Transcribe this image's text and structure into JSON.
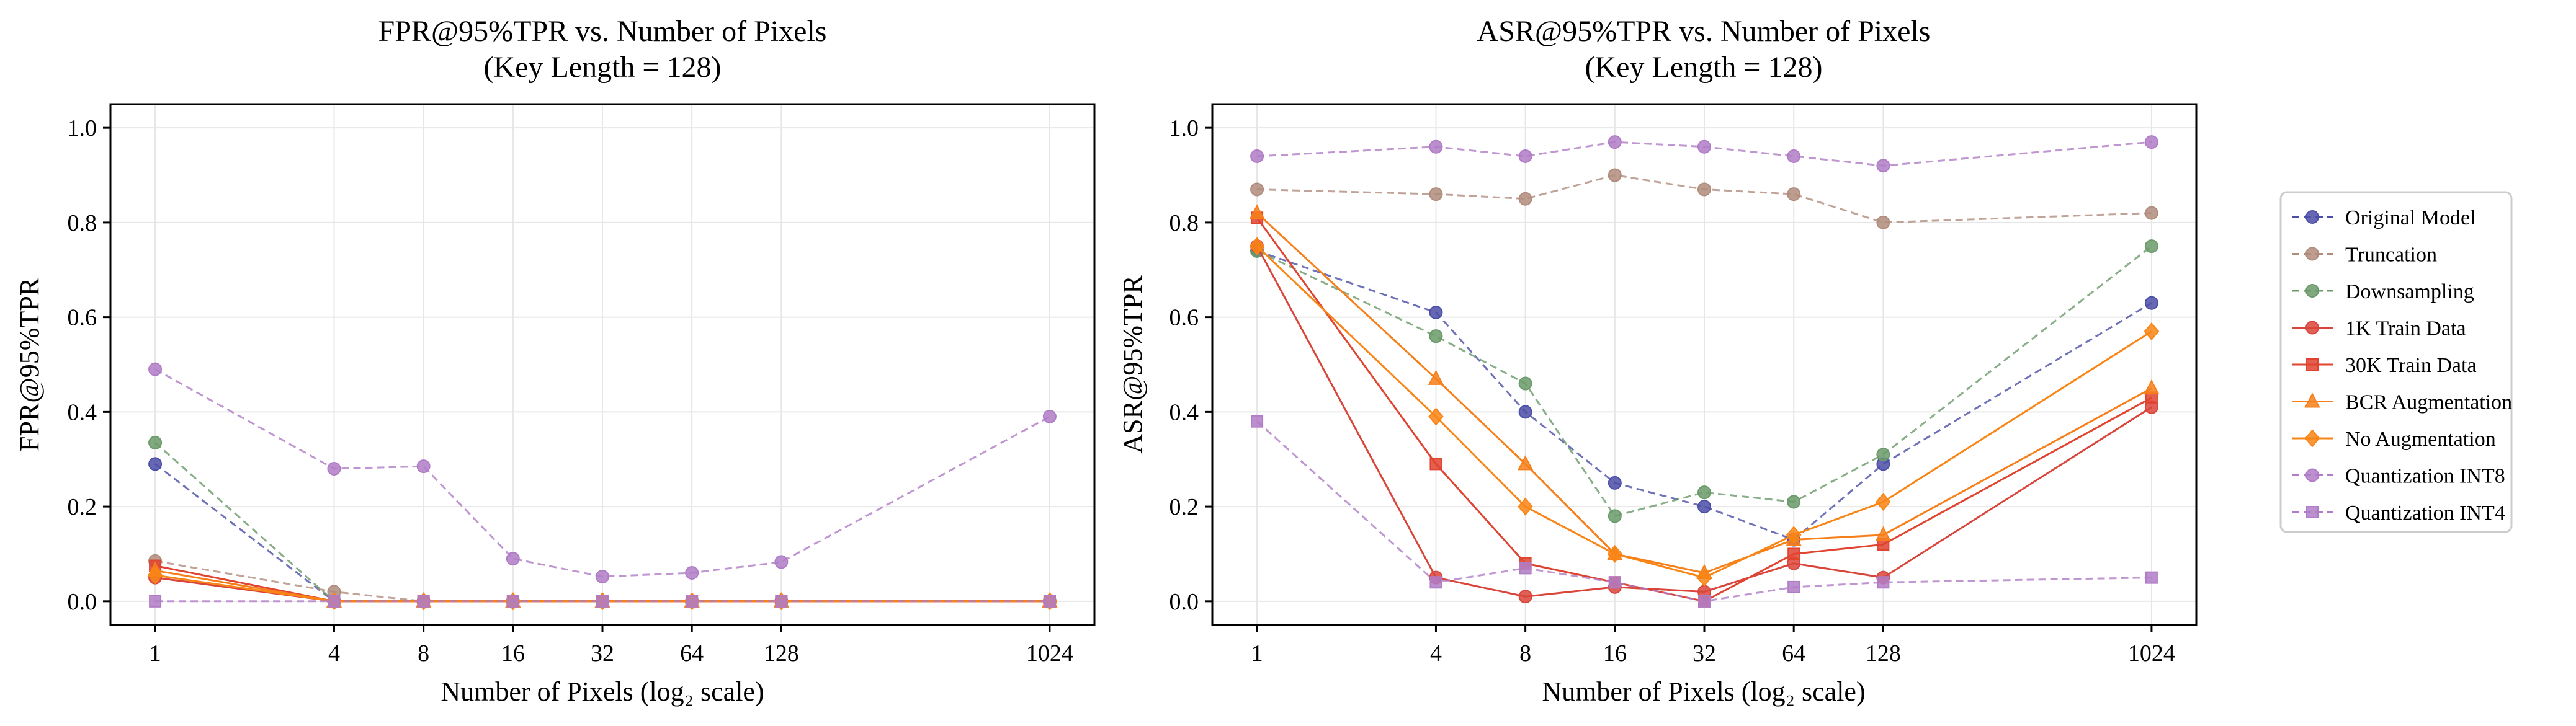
{
  "chart_data": [
    {
      "type": "line",
      "title": "FPR@95%TPR vs. Number of Pixels",
      "subtitle": "(Key Length = 128)",
      "xlabel": "Number of Pixels (log₂ scale)",
      "ylabel": "FPR@95%TPR",
      "x_scale": "log2",
      "x": [
        1,
        4,
        8,
        16,
        32,
        64,
        128,
        1024
      ],
      "x_ticks": [
        "1",
        "4",
        "8",
        "16",
        "32",
        "64",
        "128",
        "1024"
      ],
      "y_ticks": [
        "0.0",
        "0.2",
        "0.4",
        "0.6",
        "0.8",
        "1.0"
      ],
      "ylim": [
        -0.05,
        1.05
      ],
      "grid": true,
      "series": [
        {
          "name": "Original Model",
          "values": [
            0.29,
            0.0,
            0.0,
            0.0,
            0.0,
            0.0,
            0.0,
            0.0
          ],
          "color": "#4b4ea6",
          "dashed": true,
          "marker": "circle"
        },
        {
          "name": "Truncation",
          "values": [
            0.085,
            0.02,
            0.0,
            0.0,
            0.0,
            0.0,
            0.0,
            0.0
          ],
          "color": "#b08c7d",
          "dashed": true,
          "marker": "circle"
        },
        {
          "name": "Downsampling",
          "values": [
            0.335,
            0.0,
            0.0,
            0.0,
            0.0,
            0.0,
            0.0,
            0.0
          ],
          "color": "#6a9a6a",
          "dashed": true,
          "marker": "circle"
        },
        {
          "name": "1K Train Data",
          "values": [
            0.05,
            0.0,
            0.0,
            0.0,
            0.0,
            0.0,
            0.0,
            0.0
          ],
          "color": "#d9453a",
          "dashed": false,
          "marker": "circle"
        },
        {
          "name": "30K Train Data",
          "values": [
            0.075,
            0.0,
            0.0,
            0.0,
            0.0,
            0.0,
            0.0,
            0.0
          ],
          "color": "#e0432f",
          "dashed": false,
          "marker": "square"
        },
        {
          "name": "BCR Augmentation",
          "values": [
            0.065,
            0.0,
            0.0,
            0.0,
            0.0,
            0.0,
            0.0,
            0.0
          ],
          "color": "#f77f1a",
          "dashed": false,
          "marker": "triangle"
        },
        {
          "name": "No Augmentation",
          "values": [
            0.055,
            0.0,
            0.0,
            0.0,
            0.0,
            0.0,
            0.0,
            0.0
          ],
          "color": "#f98515",
          "dashed": false,
          "marker": "diamond"
        },
        {
          "name": "Quantization INT8",
          "values": [
            0.49,
            0.28,
            0.285,
            0.09,
            0.052,
            0.06,
            0.083,
            0.39
          ],
          "color": "#b07cc6",
          "dashed": true,
          "marker": "circle"
        },
        {
          "name": "Quantization INT4",
          "values": [
            0.0,
            0.0,
            0.0,
            0.0,
            0.0,
            0.0,
            0.0,
            0.0
          ],
          "color": "#b07cc6",
          "dashed": true,
          "marker": "square"
        }
      ]
    },
    {
      "type": "line",
      "title": "ASR@95%TPR vs. Number of Pixels",
      "subtitle": "(Key Length = 128)",
      "xlabel": "Number of Pixels (log₂ scale)",
      "ylabel": "ASR@95%TPR",
      "x_scale": "log2",
      "x": [
        1,
        4,
        8,
        16,
        32,
        64,
        128,
        1024
      ],
      "x_ticks": [
        "1",
        "4",
        "8",
        "16",
        "32",
        "64",
        "128",
        "1024"
      ],
      "y_ticks": [
        "0.0",
        "0.2",
        "0.4",
        "0.6",
        "0.8",
        "1.0"
      ],
      "ylim": [
        -0.05,
        1.05
      ],
      "grid": true,
      "legend_position": "right",
      "series": [
        {
          "name": "Original Model",
          "values": [
            0.74,
            0.61,
            0.4,
            0.25,
            0.2,
            0.13,
            0.29,
            0.63
          ],
          "color": "#4b4ea6",
          "dashed": true,
          "marker": "circle"
        },
        {
          "name": "Truncation",
          "values": [
            0.87,
            0.86,
            0.85,
            0.9,
            0.87,
            0.86,
            0.8,
            0.82
          ],
          "color": "#b08c7d",
          "dashed": true,
          "marker": "circle"
        },
        {
          "name": "Downsampling",
          "values": [
            0.74,
            0.56,
            0.46,
            0.18,
            0.23,
            0.21,
            0.31,
            0.75
          ],
          "color": "#6a9a6a",
          "dashed": true,
          "marker": "circle"
        },
        {
          "name": "1K Train Data",
          "values": [
            0.75,
            0.05,
            0.01,
            0.03,
            0.02,
            0.08,
            0.05,
            0.41
          ],
          "color": "#d9453a",
          "dashed": false,
          "marker": "circle"
        },
        {
          "name": "30K Train Data",
          "values": [
            0.81,
            0.29,
            0.08,
            0.04,
            0.0,
            0.1,
            0.12,
            0.43
          ],
          "color": "#e0432f",
          "dashed": false,
          "marker": "square"
        },
        {
          "name": "BCR Augmentation",
          "values": [
            0.82,
            0.47,
            0.29,
            0.1,
            0.06,
            0.13,
            0.14,
            0.45
          ],
          "color": "#f77f1a",
          "dashed": false,
          "marker": "triangle"
        },
        {
          "name": "No Augmentation",
          "values": [
            0.75,
            0.39,
            0.2,
            0.1,
            0.05,
            0.14,
            0.21,
            0.57
          ],
          "color": "#f98515",
          "dashed": false,
          "marker": "diamond"
        },
        {
          "name": "Quantization INT8",
          "values": [
            0.94,
            0.96,
            0.94,
            0.97,
            0.96,
            0.94,
            0.92,
            0.97
          ],
          "color": "#b07cc6",
          "dashed": true,
          "marker": "circle"
        },
        {
          "name": "Quantization INT4",
          "values": [
            0.38,
            0.04,
            0.07,
            0.04,
            0.0,
            0.03,
            0.04,
            0.05
          ],
          "color": "#b07cc6",
          "dashed": true,
          "marker": "square"
        }
      ]
    }
  ]
}
